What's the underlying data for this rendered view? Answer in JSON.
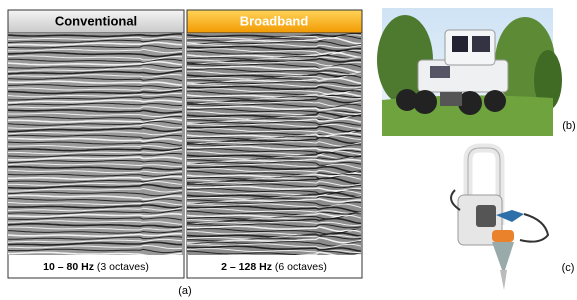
{
  "panels": [
    {
      "header": "Conventional",
      "range": "10 – 80 Hz",
      "octaves": "(3 octaves)"
    },
    {
      "header": "Broadband",
      "range": "2 – 128 Hz",
      "octaves": "(6 octaves)"
    }
  ],
  "labels": {
    "a": "(a)",
    "b": "(b)",
    "c": "(c)"
  }
}
